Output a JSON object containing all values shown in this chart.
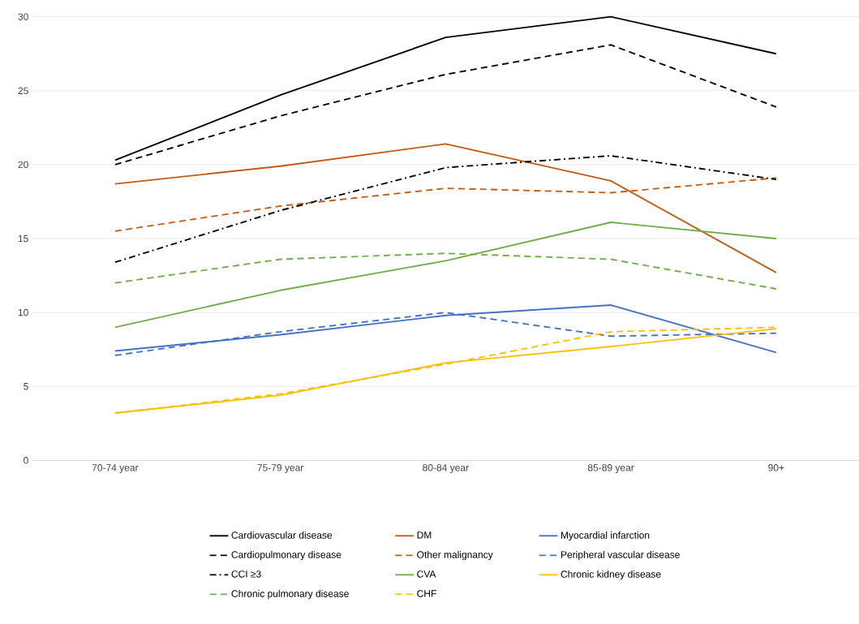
{
  "chart_data": {
    "type": "line",
    "categories": [
      "70-74 year",
      "75-79 year",
      "80-84 year",
      "85-89 year",
      "90+"
    ],
    "series": [
      {
        "name": "Cardiovascular disease",
        "color": "#000000",
        "line_style": "solid",
        "values": [
          20.3,
          24.7,
          28.6,
          30.0,
          27.5
        ]
      },
      {
        "name": "DM",
        "color": "#c55a11",
        "line_style": "solid",
        "values": [
          18.7,
          19.9,
          21.4,
          18.9,
          12.7
        ]
      },
      {
        "name": "Myocardial infarction",
        "color": "#4472c4",
        "line_style": "solid",
        "values": [
          7.4,
          8.5,
          9.8,
          10.5,
          7.3
        ]
      },
      {
        "name": "Cardiopulmonary disease",
        "color": "#000000",
        "line_style": "dashed",
        "values": [
          20.0,
          23.3,
          26.1,
          28.1,
          23.9
        ]
      },
      {
        "name": "Other malignancy",
        "color": "#c55a11",
        "line_style": "dashed",
        "values": [
          15.5,
          17.2,
          18.4,
          18.1,
          19.1
        ]
      },
      {
        "name": "Peripheral vascular disease",
        "color": "#4472c4",
        "line_style": "dashed",
        "values": [
          7.1,
          8.7,
          10.0,
          8.4,
          8.6
        ]
      },
      {
        "name": "CCI ≥3",
        "color": "#000000",
        "line_style": "dashdot",
        "values": [
          13.4,
          16.9,
          19.8,
          20.6,
          19.0
        ]
      },
      {
        "name": "CVA",
        "color": "#70ad47",
        "line_style": "solid",
        "values": [
          9.0,
          11.5,
          13.5,
          16.1,
          15.0
        ]
      },
      {
        "name": "Chronic kidney disease",
        "color": "#ffc000",
        "line_style": "solid",
        "values": [
          3.2,
          4.4,
          6.6,
          7.7,
          8.9
        ]
      },
      {
        "name": "Chronic pulmonary disease",
        "color": "#70ad47",
        "line_style": "dashed",
        "values": [
          12.0,
          13.6,
          14.0,
          13.6,
          11.6
        ]
      },
      {
        "name": "CHF",
        "color": "#ffc000",
        "line_style": "dashed",
        "values": [
          3.2,
          4.5,
          6.5,
          8.7,
          9.0
        ]
      }
    ],
    "ylim": [
      0,
      30
    ],
    "yticks": [
      0,
      5,
      10,
      15,
      20,
      25,
      30
    ],
    "grid": "y",
    "legend": "bottom",
    "marker": "none"
  }
}
